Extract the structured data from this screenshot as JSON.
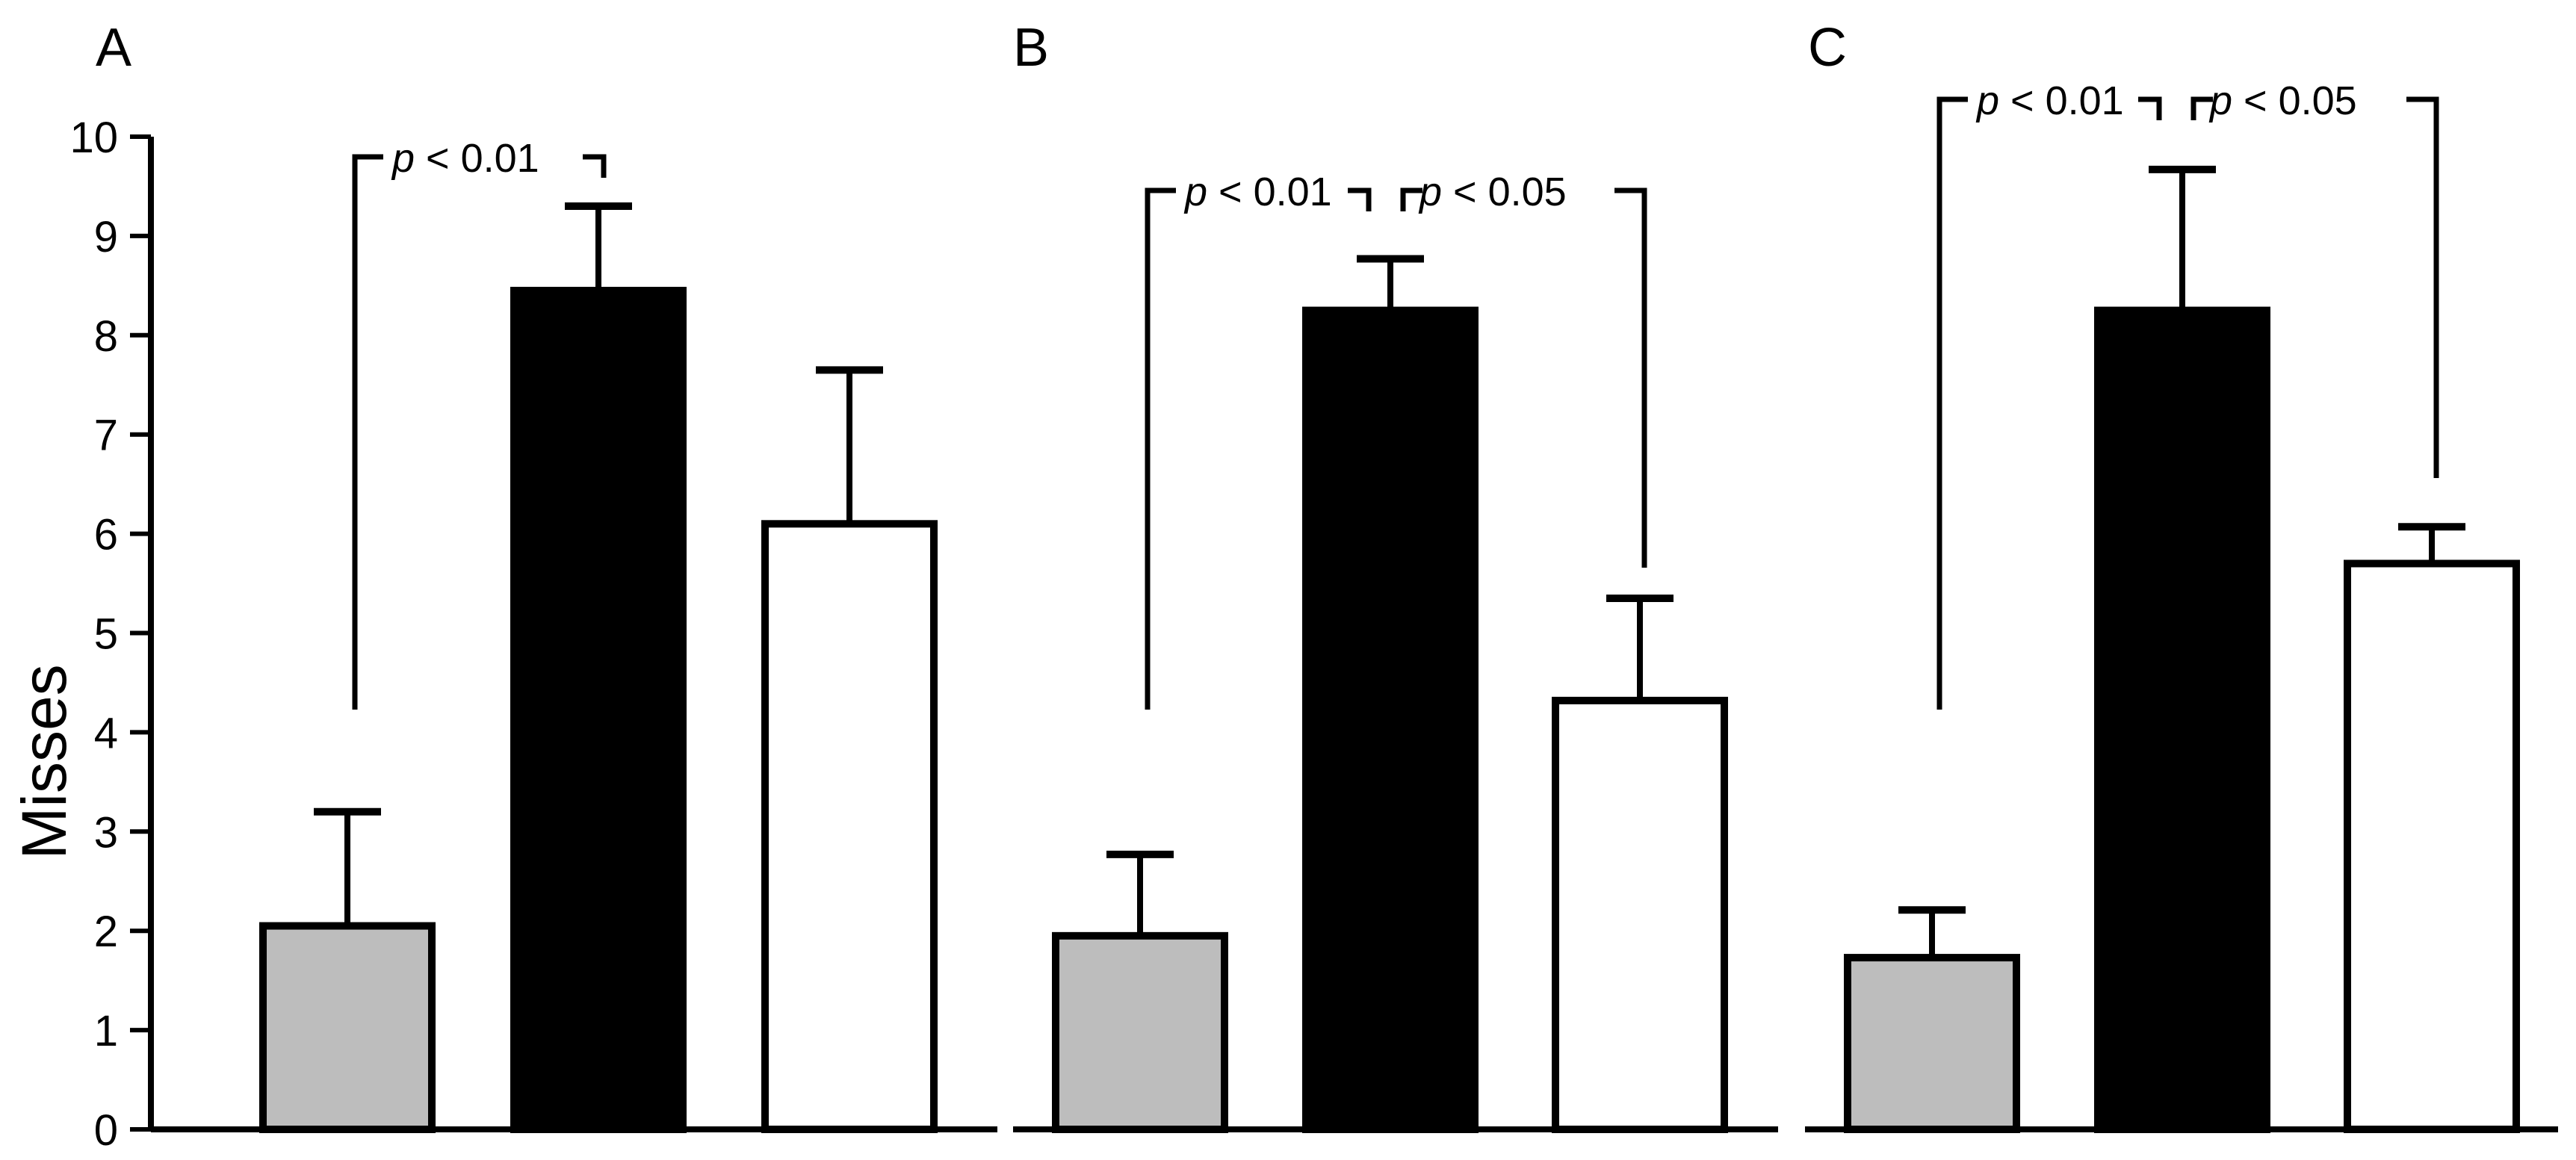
{
  "chart_data": {
    "type": "bar",
    "ylabel": "Misses",
    "ylim": [
      0,
      10
    ],
    "yticks": [
      "0",
      "1",
      "2",
      "3",
      "4",
      "5",
      "6",
      "7",
      "8",
      "9",
      "10"
    ],
    "colors": {
      "gray": "#bdbdbd",
      "black": "#000000",
      "white": "#ffffff"
    },
    "panels": [
      {
        "label": "A",
        "bars": [
          {
            "color": "gray",
            "value": 2.05,
            "error": 1.15
          },
          {
            "color": "black",
            "value": 8.45,
            "error": 0.85
          },
          {
            "color": "white",
            "value": 6.1,
            "error": 1.55
          }
        ],
        "significance": [
          {
            "text": "< 0.01",
            "p": "p",
            "from": 0,
            "to": 1
          }
        ]
      },
      {
        "label": "B",
        "bars": [
          {
            "color": "gray",
            "value": 1.95,
            "error": 0.82
          },
          {
            "color": "black",
            "value": 8.25,
            "error": 0.52
          },
          {
            "color": "white",
            "value": 4.32,
            "error": 1.03
          }
        ],
        "significance": [
          {
            "text": "< 0.01",
            "p": "p",
            "from": 0,
            "to": 1
          },
          {
            "text": "< 0.05",
            "p": "p",
            "from": 1,
            "to": 2
          }
        ]
      },
      {
        "label": "C",
        "bars": [
          {
            "color": "gray",
            "value": 1.73,
            "error": 0.48
          },
          {
            "color": "black",
            "value": 8.25,
            "error": 1.42
          },
          {
            "color": "white",
            "value": 5.7,
            "error": 0.37
          }
        ],
        "significance": [
          {
            "text": "< 0.01",
            "p": "p",
            "from": 0,
            "to": 1
          },
          {
            "text": "< 0.05",
            "p": "p",
            "from": 1,
            "to": 2
          }
        ]
      }
    ]
  }
}
